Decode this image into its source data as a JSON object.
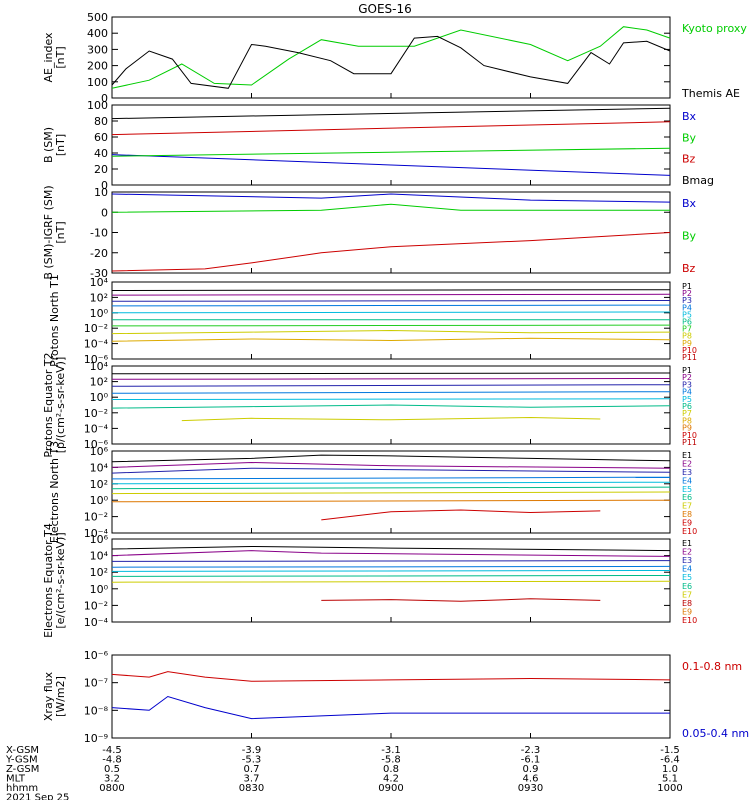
{
  "title": "GOES-16",
  "colors": {
    "black": "#000000",
    "green": "#00cc00",
    "blue": "#0000cc",
    "red": "#cc0000",
    "purple": "#880088",
    "navy": "#2222aa",
    "azure": "#0077dd",
    "cyan": "#00bbdd",
    "teal": "#00bb88",
    "lime": "#22cc22",
    "yellow": "#cccc00",
    "gold": "#ddaa00",
    "orange": "#dd7700",
    "darkred": "#bb0000"
  },
  "chart_data": [
    {
      "type": "line",
      "ylabel": "AE_index [nT]",
      "ylim": [
        0,
        500
      ],
      "yticks": [
        "0",
        "100",
        "200",
        "300",
        "400",
        "500"
      ],
      "legend": [
        "Kyoto proxy AE",
        "Themis AE"
      ],
      "series": [
        {
          "name": "Kyoto proxy AE",
          "color": "green",
          "x": [
            "0800",
            "0808",
            "0815",
            "0822",
            "0830",
            "0838",
            "0845",
            "0853",
            "0900",
            "0905",
            "0915",
            "0930",
            "0938",
            "0945",
            "0950",
            "0955",
            "1000"
          ],
          "values": [
            60,
            110,
            210,
            90,
            80,
            240,
            360,
            320,
            320,
            320,
            420,
            330,
            230,
            320,
            440,
            420,
            370
          ]
        },
        {
          "name": "Themis AE",
          "color": "black",
          "x": [
            "0800",
            "0803",
            "0808",
            "0813",
            "0817",
            "0825",
            "0830",
            "0833",
            "0840",
            "0847",
            "0852",
            "0900",
            "0905",
            "0910",
            "0915",
            "0920",
            "0930",
            "0938",
            "0943",
            "0947",
            "0950",
            "0955",
            "1000"
          ],
          "values": [
            80,
            180,
            290,
            240,
            90,
            60,
            330,
            320,
            280,
            230,
            150,
            150,
            370,
            380,
            310,
            200,
            130,
            90,
            280,
            210,
            340,
            350,
            290
          ]
        }
      ]
    },
    {
      "type": "line",
      "ylabel": "B (SM) [nT]",
      "ylim": [
        0,
        100
      ],
      "yticks": [
        "0",
        "20",
        "40",
        "60",
        "80",
        "100"
      ],
      "legend": [
        "Bx",
        "By",
        "Bz",
        "Bmag"
      ],
      "series": [
        {
          "name": "Bx",
          "color": "blue",
          "x": [
            "0800",
            "1000"
          ],
          "values": [
            38,
            12
          ]
        },
        {
          "name": "By",
          "color": "green",
          "x": [
            "0800",
            "1000"
          ],
          "values": [
            36,
            46
          ]
        },
        {
          "name": "Bz",
          "color": "red",
          "x": [
            "0800",
            "1000"
          ],
          "values": [
            63,
            79
          ]
        },
        {
          "name": "Bmag",
          "color": "black",
          "x": [
            "0800",
            "1000"
          ],
          "values": [
            83,
            96
          ]
        }
      ]
    },
    {
      "type": "line",
      "ylabel": "B (SM)-IGRF (SM) [nT]",
      "ylim": [
        -30,
        10
      ],
      "yticks": [
        "-30",
        "-20",
        "-10",
        "0",
        "10"
      ],
      "legend": [
        "Bx",
        "By",
        "Bz"
      ],
      "series": [
        {
          "name": "Bx",
          "color": "blue",
          "x": [
            "0800",
            "0845",
            "0900",
            "0930",
            "1000"
          ],
          "values": [
            9,
            7,
            9,
            6,
            5
          ]
        },
        {
          "name": "By",
          "color": "green",
          "x": [
            "0800",
            "0845",
            "0900",
            "0915",
            "1000"
          ],
          "values": [
            0,
            1,
            4,
            1,
            1
          ]
        },
        {
          "name": "Bz",
          "color": "red",
          "x": [
            "0800",
            "0820",
            "0830",
            "0845",
            "0900",
            "0930",
            "1000"
          ],
          "values": [
            -29,
            -28,
            -25,
            -20,
            -17,
            -14,
            -10
          ]
        }
      ]
    },
    {
      "type": "line",
      "ylabel": "Protons North T1",
      "ylim": [
        -6,
        4
      ],
      "yticks": [
        "10⁻⁶",
        "10⁻⁴",
        "10⁻²",
        "10⁰",
        "10²",
        "10⁴"
      ],
      "legend": [
        "P1",
        "P2",
        "P3",
        "P4",
        "P5",
        "P6",
        "P7",
        "P8",
        "P9",
        "P10",
        "P11"
      ],
      "series": [
        {
          "name": "P1",
          "color": "black",
          "x": [
            "0800",
            "1000"
          ],
          "values": [
            2.9,
            3.0
          ]
        },
        {
          "name": "P2",
          "color": "purple",
          "x": [
            "0800",
            "1000"
          ],
          "values": [
            2.3,
            2.4
          ]
        },
        {
          "name": "P3",
          "color": "navy",
          "x": [
            "0800",
            "1000"
          ],
          "values": [
            1.5,
            1.6
          ]
        },
        {
          "name": "P4",
          "color": "azure",
          "x": [
            "0800",
            "1000"
          ],
          "values": [
            0.9,
            1.0
          ]
        },
        {
          "name": "P5",
          "color": "cyan",
          "x": [
            "0800",
            "1000"
          ],
          "values": [
            0.0,
            0.1
          ]
        },
        {
          "name": "P6",
          "color": "teal",
          "x": [
            "0800",
            "1000"
          ],
          "values": [
            -0.9,
            -0.9
          ]
        },
        {
          "name": "P7",
          "color": "lime",
          "x": [
            "0800",
            "1000"
          ],
          "values": [
            -1.7,
            -1.6
          ]
        },
        {
          "name": "P8",
          "color": "yellow",
          "x": [
            "0800",
            "0830",
            "0900",
            "0930",
            "1000"
          ],
          "values": [
            -2.7,
            -2.5,
            -2.3,
            -2.6,
            -2.5
          ]
        },
        {
          "name": "P9",
          "color": "gold",
          "x": [
            "0800",
            "0830",
            "0900",
            "0930",
            "1000"
          ],
          "values": [
            -3.7,
            -3.4,
            -3.6,
            -3.3,
            -3.5
          ]
        }
      ]
    },
    {
      "type": "line",
      "ylabel": "Protons Equator T2 [p/(cm²-s-sr-keV)]",
      "ylim": [
        -6,
        4
      ],
      "yticks": [
        "10⁻⁶",
        "10⁻⁴",
        "10⁻²",
        "10⁰",
        "10²",
        "10⁴"
      ],
      "legend": [
        "P1",
        "P2",
        "P3",
        "P4",
        "P5",
        "P6",
        "P7",
        "P8",
        "P9",
        "P10",
        "P11"
      ],
      "series": [
        {
          "name": "P1",
          "color": "black",
          "x": [
            "0800",
            "1000"
          ],
          "values": [
            3.0,
            3.1
          ]
        },
        {
          "name": "P2",
          "color": "purple",
          "x": [
            "0800",
            "1000"
          ],
          "values": [
            2.3,
            2.4
          ]
        },
        {
          "name": "P3",
          "color": "navy",
          "x": [
            "0800",
            "1000"
          ],
          "values": [
            1.4,
            1.6
          ]
        },
        {
          "name": "P4",
          "color": "azure",
          "x": [
            "0800",
            "1000"
          ],
          "values": [
            0.5,
            0.7
          ]
        },
        {
          "name": "P5",
          "color": "cyan",
          "x": [
            "0800",
            "1000"
          ],
          "values": [
            -0.3,
            -0.2
          ]
        },
        {
          "name": "P6",
          "color": "teal",
          "x": [
            "0800",
            "0830",
            "0900",
            "0930",
            "1000"
          ],
          "values": [
            -1.4,
            -1.2,
            -1.0,
            -1.3,
            -1.1
          ]
        },
        {
          "name": "P7",
          "color": "yellow",
          "x": [
            "0815",
            "0830",
            "0900",
            "0930",
            "0945"
          ],
          "values": [
            -3.0,
            -2.7,
            -2.9,
            -2.6,
            -2.8
          ]
        }
      ]
    },
    {
      "type": "line",
      "ylabel": "Electrons North T3",
      "ylim": [
        -4,
        6
      ],
      "yticks": [
        "10⁻⁴",
        "10⁻²",
        "10⁰",
        "10²",
        "10⁴",
        "10⁶"
      ],
      "legend": [
        "E1",
        "E2",
        "E3",
        "E4",
        "E5",
        "E6",
        "E7",
        "E8",
        "E9",
        "E10"
      ],
      "series": [
        {
          "name": "E1",
          "color": "black",
          "x": [
            "0800",
            "0830",
            "0845",
            "0900",
            "0930",
            "1000"
          ],
          "values": [
            4.7,
            5.1,
            5.5,
            5.4,
            5.1,
            4.8
          ]
        },
        {
          "name": "E2",
          "color": "purple",
          "x": [
            "0800",
            "0830",
            "0845",
            "0900",
            "1000"
          ],
          "values": [
            4.0,
            4.6,
            4.4,
            4.2,
            3.9
          ]
        },
        {
          "name": "E3",
          "color": "navy",
          "x": [
            "0800",
            "0830",
            "1000"
          ],
          "values": [
            3.3,
            3.9,
            3.4
          ]
        },
        {
          "name": "E4",
          "color": "azure",
          "x": [
            "0800",
            "1000"
          ],
          "values": [
            2.6,
            2.8
          ]
        },
        {
          "name": "E5",
          "color": "cyan",
          "x": [
            "0800",
            "1000"
          ],
          "values": [
            2.0,
            2.2
          ]
        },
        {
          "name": "E6",
          "color": "teal",
          "x": [
            "0800",
            "1000"
          ],
          "values": [
            1.4,
            1.6
          ]
        },
        {
          "name": "E7",
          "color": "yellow",
          "x": [
            "0800",
            "1000"
          ],
          "values": [
            0.8,
            1.0
          ]
        },
        {
          "name": "E8",
          "color": "orange",
          "x": [
            "0800",
            "1000"
          ],
          "values": [
            -0.2,
            0.0
          ]
        },
        {
          "name": "E9",
          "color": "red",
          "x": [
            "0845",
            "0900",
            "0915",
            "0930",
            "0945"
          ],
          "values": [
            -2.4,
            -1.4,
            -1.2,
            -1.5,
            -1.3
          ]
        }
      ]
    },
    {
      "type": "line",
      "ylabel": "Electrons Equator T4 [e/(cm²-s-sr-keV)]",
      "ylim": [
        -4,
        6
      ],
      "yticks": [
        "10⁻⁴",
        "10⁻²",
        "10⁰",
        "10²",
        "10⁴",
        "10⁶"
      ],
      "legend": [
        "E1",
        "E2",
        "E3",
        "E4",
        "E5",
        "E6",
        "E7",
        "E8",
        "E9",
        "E10"
      ],
      "series": [
        {
          "name": "E1",
          "color": "black",
          "x": [
            "0800",
            "0830",
            "0845",
            "0900",
            "1000"
          ],
          "values": [
            4.8,
            5.1,
            5.0,
            4.9,
            4.6
          ]
        },
        {
          "name": "E2",
          "color": "purple",
          "x": [
            "0800",
            "0830",
            "0845",
            "1000"
          ],
          "values": [
            4.0,
            4.6,
            4.3,
            3.9
          ]
        },
        {
          "name": "E3",
          "color": "navy",
          "x": [
            "0800",
            "1000"
          ],
          "values": [
            3.3,
            3.4
          ]
        },
        {
          "name": "E4",
          "color": "azure",
          "x": [
            "0800",
            "1000"
          ],
          "values": [
            2.6,
            2.7
          ]
        },
        {
          "name": "E5",
          "color": "cyan",
          "x": [
            "0800",
            "1000"
          ],
          "values": [
            2.1,
            2.2
          ]
        },
        {
          "name": "E6",
          "color": "teal",
          "x": [
            "0800",
            "1000"
          ],
          "values": [
            1.5,
            1.6
          ]
        },
        {
          "name": "E7",
          "color": "yellow",
          "x": [
            "0800",
            "1000"
          ],
          "values": [
            0.8,
            0.9
          ]
        },
        {
          "name": "E8",
          "color": "darkred",
          "x": [
            "0845",
            "0900",
            "0915",
            "0930",
            "0945"
          ],
          "values": [
            -1.4,
            -1.3,
            -1.5,
            -1.2,
            -1.4
          ]
        }
      ]
    },
    {
      "type": "line",
      "ylabel": "Xray flux [W/m2]",
      "ylim": [
        -9,
        -6
      ],
      "yticks": [
        "10⁻⁹",
        "10⁻⁸",
        "10⁻⁷",
        "10⁻⁶"
      ],
      "legend": [
        "0.1-0.8 nm",
        "0.05-0.4 nm"
      ],
      "series": [
        {
          "name": "0.1-0.8 nm",
          "color": "red",
          "x": [
            "0800",
            "0808",
            "0812",
            "0820",
            "0830",
            "0900",
            "0930",
            "1000"
          ],
          "values": [
            -6.7,
            -6.8,
            -6.6,
            -6.8,
            -6.95,
            -6.9,
            -6.85,
            -6.9
          ]
        },
        {
          "name": "0.05-0.4 nm",
          "color": "blue",
          "x": [
            "0800",
            "0808",
            "0812",
            "0820",
            "0830",
            "0845",
            "0900",
            "0930",
            "1000"
          ],
          "values": [
            -7.9,
            -8.0,
            -7.5,
            -7.9,
            -8.3,
            -8.2,
            -8.1,
            -8.1,
            -8.1
          ]
        }
      ]
    }
  ],
  "xaxis": {
    "rows": [
      {
        "label": "X-GSM",
        "values": [
          "-4.5",
          "-3.9",
          "-3.1",
          "-2.3",
          "-1.5"
        ]
      },
      {
        "label": "Y-GSM",
        "values": [
          "-4.8",
          "-5.3",
          "-5.8",
          "-6.1",
          "-6.4"
        ]
      },
      {
        "label": "Z-GSM",
        "values": [
          "0.5",
          "0.7",
          "0.8",
          "0.9",
          "1.0"
        ]
      },
      {
        "label": "MLT",
        "values": [
          "3.2",
          "3.7",
          "4.2",
          "4.6",
          "5.1"
        ]
      },
      {
        "label": "hhmm",
        "values": [
          "0800",
          "0830",
          "0900",
          "0930",
          "1000"
        ]
      }
    ],
    "date": "2021 Sep 25"
  }
}
